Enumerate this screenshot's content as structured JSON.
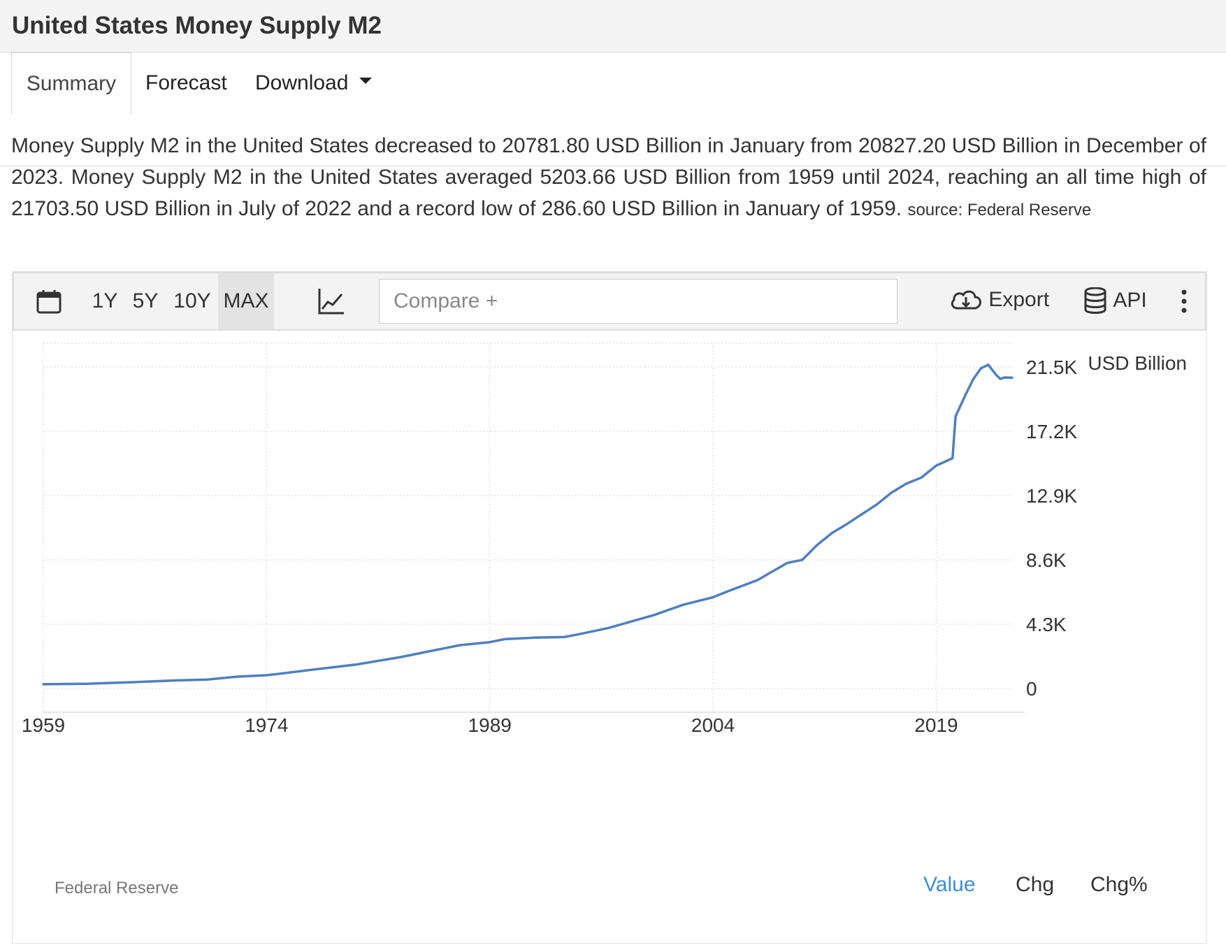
{
  "page": {
    "title": "United States Money Supply M2",
    "tabs": [
      {
        "label": "Summary",
        "active": true
      },
      {
        "label": "Forecast",
        "active": false
      },
      {
        "label": "Download",
        "active": false
      }
    ],
    "summary_text": "Money Supply M2 in the United States decreased to 20781.80 USD Billion in January from 20827.20 USD Billion in December of 2023. Money Supply M2 in the United States averaged 5203.66 USD Billion from 1959 until 2024, reaching an all time high of 21703.50 USD Billion in July of 2022 and a record low of 286.60 USD Billion in January of 1959.",
    "summary_source": "source: Federal Reserve"
  },
  "toolbar": {
    "calendar_icon": "calendar-icon",
    "ranges": [
      {
        "label": "1Y",
        "selected": false
      },
      {
        "label": "5Y",
        "selected": false
      },
      {
        "label": "10Y",
        "selected": false
      },
      {
        "label": "MAX",
        "selected": true
      }
    ],
    "chart_type_icon": "line-chart-icon",
    "compare_placeholder": "Compare +",
    "export_label": "Export",
    "export_icon": "cloud-download-icon",
    "api_label": "API",
    "api_icon": "database-icon",
    "more_icon": "more-vertical-icon"
  },
  "chart_footer": {
    "source": "Federal Reserve",
    "views": [
      {
        "label": "Value",
        "active": true
      },
      {
        "label": "Chg",
        "active": false
      },
      {
        "label": "Chg%",
        "active": false
      }
    ]
  },
  "colors": {
    "line": "#4f7fbf",
    "active_link": "#3d8fd6",
    "grid": "#d6d6d6"
  },
  "chart_data": {
    "type": "line",
    "title": "",
    "unit_label": "USD Billion",
    "x_ticks": [
      "1959",
      "1974",
      "1989",
      "2004",
      "2019"
    ],
    "y_ticks": [
      "0",
      "4.3K",
      "8.6K",
      "12.9K",
      "17.2K",
      "21.5K"
    ],
    "ylim": [
      0,
      21500
    ],
    "xlim": [
      1959,
      2024.1
    ],
    "grid": true,
    "series": [
      {
        "x": [
          1959,
          1962,
          1965,
          1968,
          1970,
          1972,
          1974,
          1975,
          1977,
          1980,
          1983,
          1985,
          1987,
          1989,
          1990,
          1992,
          1994,
          1995,
          1997,
          1999,
          2000,
          2002,
          2004,
          2005,
          2007,
          2008,
          2009,
          2010,
          2011,
          2012,
          2013,
          2014,
          2015,
          2016,
          2017,
          2018,
          2019,
          2020.1,
          2020.3,
          2021,
          2021.5,
          2022,
          2022.5,
          2023,
          2023.3,
          2023.6,
          2024.1
        ],
        "y": [
          287,
          320,
          420,
          540,
          600,
          790,
          890,
          1000,
          1250,
          1600,
          2100,
          2500,
          2900,
          3100,
          3300,
          3400,
          3440,
          3630,
          4050,
          4620,
          4900,
          5600,
          6100,
          6500,
          7250,
          7830,
          8400,
          8600,
          9600,
          10400,
          11000,
          11650,
          12300,
          13100,
          13700,
          14100,
          14900,
          15400,
          18200,
          19700,
          20700,
          21400,
          21650,
          21000,
          20700,
          20800,
          20782
        ]
      }
    ]
  }
}
